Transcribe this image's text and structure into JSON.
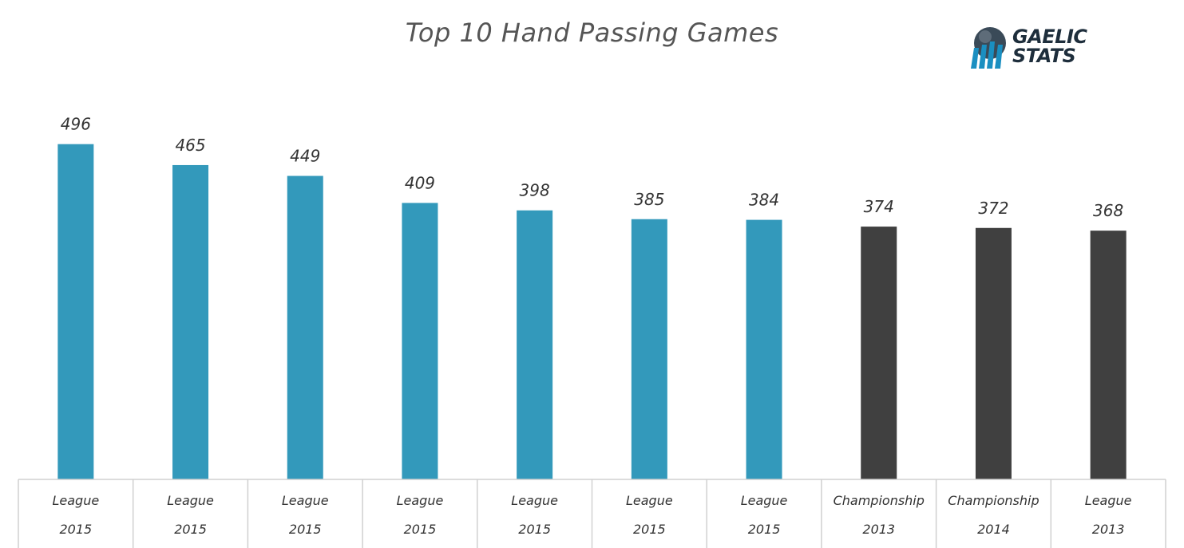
{
  "chart_data": {
    "type": "bar",
    "title": "Top 10 Hand Passing Games",
    "categories": [
      [
        "League",
        "2015"
      ],
      [
        "League",
        "2015"
      ],
      [
        "League",
        "2015"
      ],
      [
        "League",
        "2015"
      ],
      [
        "League",
        "2015"
      ],
      [
        "League",
        "2015"
      ],
      [
        "League",
        "2015"
      ],
      [
        "Championship",
        "2013"
      ],
      [
        "Championship",
        "2014"
      ],
      [
        "League",
        "2013"
      ]
    ],
    "values": [
      496,
      465,
      449,
      409,
      398,
      385,
      384,
      374,
      372,
      368
    ],
    "colors": [
      "#3399bb",
      "#3399bb",
      "#3399bb",
      "#3399bb",
      "#3399bb",
      "#3399bb",
      "#3399bb",
      "#404040",
      "#404040",
      "#404040"
    ],
    "data_labels": true,
    "ylim": [
      0,
      500
    ],
    "grid": false,
    "legend": "none"
  },
  "logo": {
    "line1": "GAELIC",
    "line2": "STATS",
    "colors": {
      "blue": "#1a8fc1",
      "dark": "#1e2e3c"
    }
  }
}
